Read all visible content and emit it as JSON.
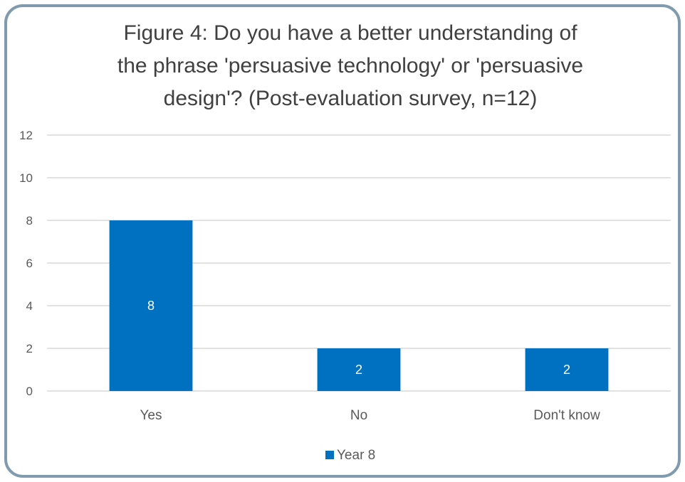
{
  "chart_data": {
    "type": "bar",
    "title_lines": [
      "Figure 4: Do you have a better understanding of",
      "the phrase 'persuasive technology' or 'persuasive",
      "design'? (Post-evaluation survey, n=12)"
    ],
    "categories": [
      "Yes",
      "No",
      "Don't know"
    ],
    "series": [
      {
        "name": "Year 8",
        "values": [
          8,
          2,
          2
        ],
        "color": "#0070c0"
      }
    ],
    "data_labels": [
      "8",
      "2",
      "2"
    ],
    "ylim": [
      0,
      12
    ],
    "yticks": [
      "0",
      "2",
      "4",
      "6",
      "8",
      "10",
      "12"
    ],
    "grid": true,
    "legend_position": "bottom"
  }
}
